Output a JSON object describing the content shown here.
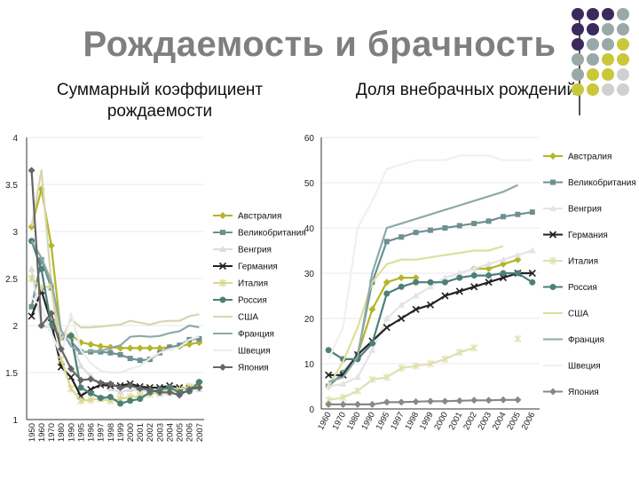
{
  "slide": {
    "title": "Рождаемость и брачность",
    "subtitle_left": "Суммарный коэффициент рождаемости",
    "subtitle_right": "Доля внебрачных рождений"
  },
  "chart_data": [
    {
      "type": "line",
      "title": "Суммарный коэффициент рождаемости",
      "categories": [
        "1950",
        "1960",
        "1970",
        "1980",
        "1990",
        "1995",
        "1996",
        "1997",
        "1998",
        "1999",
        "2000",
        "2001",
        "2002",
        "2003",
        "2004",
        "2005",
        "2006",
        "2007"
      ],
      "ylim": [
        1,
        4
      ],
      "yticks": [
        1,
        1.5,
        2,
        2.5,
        3,
        3.5,
        4
      ],
      "legend_position": "center",
      "series": [
        {
          "name": "Австралия",
          "color": "#b5b52a",
          "marker": "diamond",
          "values": [
            3.05,
            3.45,
            2.85,
            1.9,
            1.9,
            1.82,
            1.8,
            1.78,
            1.77,
            1.76,
            1.76,
            1.76,
            1.76,
            1.76,
            1.77,
            1.78,
            1.8,
            1.82
          ]
        },
        {
          "name": "Великобритания",
          "color": "#6e9090",
          "marker": "square",
          "values": [
            2.2,
            2.7,
            2.4,
            1.9,
            1.83,
            1.72,
            1.72,
            1.72,
            1.71,
            1.69,
            1.65,
            1.63,
            1.64,
            1.71,
            1.77,
            1.79,
            1.85,
            1.86
          ]
        },
        {
          "name": "Венгрия",
          "color": "#dcdcdc",
          "marker": "triangle",
          "values": [
            2.6,
            2.0,
            1.97,
            1.91,
            1.84,
            1.57,
            1.46,
            1.38,
            1.33,
            1.29,
            1.32,
            1.31,
            1.3,
            1.27,
            1.28,
            1.31,
            1.34,
            1.32
          ]
        },
        {
          "name": "Германия",
          "color": "#222222",
          "marker": "x",
          "values": [
            2.1,
            2.37,
            2.03,
            1.56,
            1.45,
            1.25,
            1.32,
            1.37,
            1.36,
            1.36,
            1.38,
            1.35,
            1.34,
            1.34,
            1.36,
            1.34,
            1.33,
            1.37
          ]
        },
        {
          "name": "Италия",
          "color": "#d8d890",
          "marker": "star",
          "values": [
            2.5,
            2.4,
            2.42,
            1.64,
            1.33,
            1.2,
            1.21,
            1.22,
            1.2,
            1.22,
            1.24,
            1.25,
            1.27,
            1.29,
            1.33,
            1.32,
            1.35,
            1.38
          ]
        },
        {
          "name": "Россия",
          "color": "#4e7f78",
          "marker": "circle",
          "values": [
            2.9,
            2.6,
            2.0,
            1.87,
            1.89,
            1.34,
            1.28,
            1.23,
            1.24,
            1.17,
            1.2,
            1.22,
            1.29,
            1.32,
            1.34,
            1.29,
            1.3,
            1.4
          ]
        },
        {
          "name": "США",
          "color": "#d6d6b0",
          "marker": "none",
          "values": [
            3.05,
            3.65,
            2.45,
            1.84,
            2.07,
            1.98,
            1.98,
            1.99,
            2.0,
            2.01,
            2.05,
            2.03,
            2.01,
            2.04,
            2.05,
            2.05,
            2.1,
            2.12
          ]
        },
        {
          "name": "Франция",
          "color": "#8caaaa",
          "marker": "none",
          "values": [
            2.9,
            2.72,
            2.47,
            1.95,
            1.78,
            1.71,
            1.73,
            1.73,
            1.76,
            1.79,
            1.88,
            1.89,
            1.88,
            1.89,
            1.92,
            1.94,
            2.0,
            1.98
          ]
        },
        {
          "name": "Швеция",
          "color": "#ececec",
          "marker": "none",
          "values": [
            2.3,
            2.2,
            1.92,
            1.68,
            2.13,
            1.74,
            1.6,
            1.52,
            1.5,
            1.5,
            1.54,
            1.57,
            1.65,
            1.71,
            1.75,
            1.77,
            1.85,
            1.88
          ]
        },
        {
          "name": "Япония",
          "color": "#666666",
          "marker": "diamond",
          "values": [
            3.65,
            2.0,
            2.13,
            1.75,
            1.54,
            1.42,
            1.43,
            1.39,
            1.38,
            1.34,
            1.36,
            1.33,
            1.32,
            1.29,
            1.29,
            1.26,
            1.32,
            1.34
          ]
        }
      ]
    },
    {
      "type": "line",
      "title": "Доля внебрачных рождений",
      "categories": [
        "1960",
        "1970",
        "1980",
        "1990",
        "1995",
        "1997",
        "1998",
        "1999",
        "2000",
        "2001",
        "2002",
        "2003",
        "2004",
        "2005",
        "2006"
      ],
      "ylim": [
        0,
        60
      ],
      "yticks": [
        0,
        10,
        20,
        30,
        40,
        50,
        60
      ],
      "legend_position": "right",
      "series": [
        {
          "name": "Австралия",
          "color": "#b5b52a",
          "marker": "diamond",
          "values": [
            5,
            8,
            12,
            22,
            28,
            29,
            29,
            null,
            null,
            null,
            31,
            31,
            32,
            33,
            null
          ]
        },
        {
          "name": "Великобритания",
          "color": "#6e9090",
          "marker": "square",
          "values": [
            5,
            8,
            12,
            28,
            37,
            38,
            39,
            39.5,
            40,
            40.5,
            41,
            41.5,
            42.5,
            43,
            43.5
          ]
        },
        {
          "name": "Венгрия",
          "color": "#e4e4e4",
          "marker": "triangle",
          "values": [
            5,
            5.5,
            7,
            13,
            20,
            23,
            25,
            27,
            29,
            30,
            31,
            32,
            33,
            34,
            35
          ]
        },
        {
          "name": "Германия",
          "color": "#222222",
          "marker": "x",
          "values": [
            7.5,
            7.5,
            12,
            15,
            18,
            20,
            22,
            23,
            25,
            26,
            27,
            28,
            29,
            30,
            30
          ]
        },
        {
          "name": "Италия",
          "color": "#e0e0b0",
          "marker": "star",
          "values": [
            2,
            2.5,
            4,
            6.5,
            7,
            9,
            9.5,
            10,
            11,
            12.5,
            13.5,
            null,
            null,
            15.5,
            null
          ]
        },
        {
          "name": "Россия",
          "color": "#4e7f78",
          "marker": "circle",
          "values": [
            13,
            11,
            11,
            14.5,
            25.5,
            27,
            28,
            28,
            28,
            29,
            29.5,
            29.5,
            30,
            30,
            28
          ]
        },
        {
          "name": "США",
          "color": "#dede9c",
          "marker": "none",
          "values": [
            5,
            10.5,
            18,
            28,
            32,
            33,
            33,
            33.5,
            34,
            34.5,
            35,
            35,
            36,
            null,
            null
          ]
        },
        {
          "name": "Франция",
          "color": "#8caaaa",
          "marker": "none",
          "values": [
            6,
            7,
            11.5,
            30,
            40,
            41,
            42,
            43,
            44,
            45,
            46,
            47,
            48,
            49.5,
            null
          ]
        },
        {
          "name": "Швеция",
          "color": "#f0f0f0",
          "marker": "none",
          "values": [
            11,
            18,
            40,
            46,
            53,
            54,
            55,
            55,
            55,
            56,
            56,
            56,
            55,
            55,
            55
          ]
        },
        {
          "name": "Япония",
          "color": "#888888",
          "marker": "diamond",
          "values": [
            1,
            1,
            1,
            1,
            1.5,
            1.5,
            1.6,
            1.7,
            1.7,
            1.8,
            1.9,
            1.9,
            2,
            2,
            null
          ]
        }
      ]
    }
  ]
}
